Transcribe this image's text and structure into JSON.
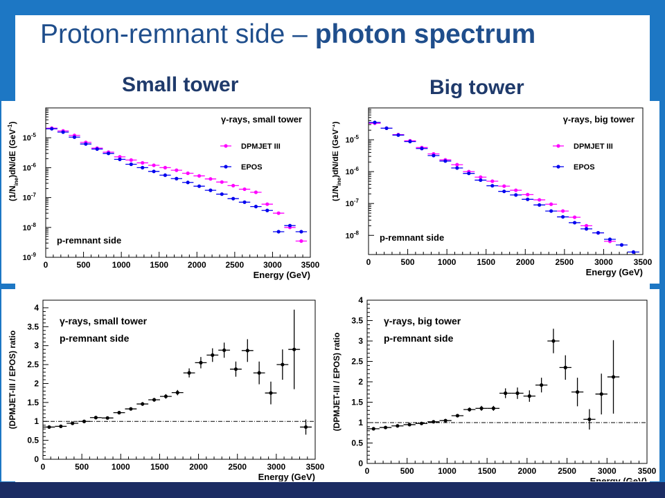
{
  "slide": {
    "title_main": "Proton-remnant side – ",
    "title_bold": "photon spectrum",
    "label_small": "Small tower",
    "label_big": "Big tower"
  },
  "colors": {
    "frame": "#1d77c4",
    "frame_bottom": "#1b2c63",
    "dpmjet": "#ff00ff",
    "epos": "#0000ee",
    "ratio": "#000000"
  },
  "chart_data": [
    {
      "id": "tl",
      "type": "scatter",
      "yscale": "log",
      "title": "γ-rays, small tower",
      "annotation": "p-remnant side",
      "xlabel": "Energy (GeV)",
      "ylabel": "(1/N_ine)dN/dE (GeV^-1)",
      "xlim": [
        0,
        3500
      ],
      "ylim": [
        1e-09,
        0.0001
      ],
      "xticks": [
        0,
        500,
        1000,
        1500,
        2000,
        2500,
        3000,
        3500
      ],
      "yticks": [
        1e-09,
        1e-08,
        1e-07,
        1e-06,
        1e-05
      ],
      "ytick_labels": [
        "10",
        "10",
        "10",
        "10",
        "10"
      ],
      "ytick_exps": [
        "-9",
        "-8",
        "-7",
        "-6",
        "-5"
      ],
      "legend": [
        "DPMJET III",
        "EPOS"
      ],
      "legend_position": "top-right",
      "series": [
        {
          "name": "DPMJET III",
          "color": "#ff00ff",
          "x": [
            80,
            230,
            380,
            530,
            680,
            830,
            980,
            1130,
            1280,
            1430,
            1580,
            1730,
            1880,
            2030,
            2180,
            2330,
            2480,
            2630,
            2780,
            2930,
            3080,
            3230,
            3380
          ],
          "y": [
            2.1e-05,
            1.7e-05,
            1.2e-05,
            7e-06,
            4.5e-06,
            3.3e-06,
            2.3e-06,
            1.8e-06,
            1.45e-06,
            1.2e-06,
            1e-06,
            8.2e-07,
            6.5e-07,
            5.3e-07,
            4.2e-07,
            3.3e-07,
            2.5e-07,
            1.9e-07,
            1.5e-07,
            6e-08,
            3e-08,
            1e-08,
            3.5e-09
          ],
          "xerr": 75
        },
        {
          "name": "EPOS",
          "color": "#0000ee",
          "x": [
            80,
            230,
            380,
            530,
            680,
            830,
            980,
            1130,
            1280,
            1430,
            1580,
            1730,
            1880,
            2030,
            2180,
            2330,
            2480,
            2630,
            2780,
            2930,
            3080,
            3230,
            3380
          ],
          "y": [
            2e-05,
            1.55e-05,
            1.05e-05,
            6.2e-06,
            4.2e-06,
            3e-06,
            1.9e-06,
            1.3e-06,
            1e-06,
            7.5e-07,
            5.6e-07,
            4.3e-07,
            3.2e-07,
            2.4e-07,
            1.75e-07,
            1.3e-07,
            9.2e-08,
            7e-08,
            5e-08,
            3.7e-08,
            7.2e-09,
            1.15e-08,
            7.2e-09
          ],
          "xerr": 75
        }
      ]
    },
    {
      "id": "tr",
      "type": "scatter",
      "yscale": "log",
      "title": "γ-rays, big tower",
      "annotation": "p-remnant side",
      "xlabel": "Energy (GeV)",
      "ylabel": "(1/N_ine)dN/dE (GeV^-1)",
      "xlim": [
        0,
        3500
      ],
      "ylim": [
        2.5e-09,
        0.0001
      ],
      "xticks": [
        0,
        500,
        1000,
        1500,
        2000,
        2500,
        3000,
        3500
      ],
      "yticks": [
        1e-08,
        1e-07,
        1e-06,
        1e-05
      ],
      "ytick_labels": [
        "10",
        "10",
        "10",
        "10"
      ],
      "ytick_exps": [
        "-8",
        "-7",
        "-6",
        "-5"
      ],
      "legend": [
        "DPMJET III",
        "EPOS"
      ],
      "legend_position": "top-right",
      "series": [
        {
          "name": "DPMJET III",
          "color": "#ff00ff",
          "x": [
            80,
            230,
            380,
            530,
            680,
            830,
            980,
            1130,
            1280,
            1430,
            1580,
            1730,
            1880,
            2030,
            2180,
            2330,
            2480,
            2630,
            2780,
            2930,
            3080
          ],
          "y": [
            3.3e-05,
            2.3e-05,
            1.45e-05,
            9.3e-06,
            5.7e-06,
            3.6e-06,
            2.35e-06,
            1.65e-06,
            1e-06,
            6.7e-07,
            5e-07,
            3.5e-07,
            2.6e-07,
            1.9e-07,
            1.3e-07,
            9.5e-08,
            5.8e-08,
            3.7e-08,
            2e-08,
            1.2e-08,
            6.5e-09
          ],
          "xerr": 75
        },
        {
          "name": "EPOS",
          "color": "#0000ee",
          "x": [
            80,
            230,
            380,
            530,
            680,
            830,
            980,
            1130,
            1280,
            1430,
            1580,
            1730,
            1880,
            2030,
            2180,
            2330,
            2480,
            2630,
            2780,
            2930,
            3080,
            3230,
            3380
          ],
          "y": [
            3.5e-05,
            2.3e-05,
            1.4e-05,
            8.8e-06,
            5.3e-06,
            3.2e-06,
            2.15e-06,
            1.3e-06,
            8.8e-07,
            5.4e-07,
            3.6e-07,
            2.4e-07,
            1.85e-07,
            1.35e-07,
            9e-08,
            5.8e-08,
            3.8e-08,
            2.5e-08,
            1.6e-08,
            1.2e-08,
            7.5e-09,
            5e-09,
            3e-09
          ],
          "xerr": 75
        }
      ]
    },
    {
      "id": "bl",
      "type": "scatter",
      "title": "γ-rays, small tower",
      "annotation": "p-remnant side",
      "xlabel": "Energy (GeV)",
      "ylabel": "(DPMJET-III / EPOS) ratio",
      "xlim": [
        0,
        3500
      ],
      "ylim": [
        0,
        4.2
      ],
      "xticks": [
        0,
        500,
        1000,
        1500,
        2000,
        2500,
        3000,
        3500
      ],
      "yticks": [
        0,
        0.5,
        1,
        1.5,
        2,
        2.5,
        3,
        3.5,
        4
      ],
      "reference_line": 1,
      "series": [
        {
          "name": "",
          "color": "#000000",
          "x": [
            80,
            230,
            380,
            530,
            680,
            830,
            980,
            1130,
            1280,
            1430,
            1580,
            1730,
            1880,
            2030,
            2180,
            2330,
            2480,
            2630,
            2780,
            2930,
            3080,
            3230,
            3380
          ],
          "y": [
            0.85,
            0.87,
            0.95,
            1.0,
            1.1,
            1.09,
            1.23,
            1.33,
            1.46,
            1.57,
            1.66,
            1.76,
            2.28,
            2.55,
            2.75,
            2.88,
            2.38,
            2.87,
            2.28,
            1.75,
            2.5,
            2.9,
            0.85
          ],
          "yerr": [
            0.03,
            0.03,
            0.03,
            0.03,
            0.03,
            0.03,
            0.04,
            0.04,
            0.05,
            0.05,
            0.06,
            0.07,
            0.12,
            0.15,
            0.18,
            0.2,
            0.2,
            0.3,
            0.3,
            0.3,
            0.4,
            1.05,
            0.2
          ],
          "xerr": 75
        }
      ]
    },
    {
      "id": "br",
      "type": "scatter",
      "title": "γ-rays, big tower",
      "annotation": "p-remnant side",
      "xlabel": "Energy (GeV)",
      "ylabel": "(DPMJET-III / EPOS) ratio",
      "xlim": [
        0,
        3500
      ],
      "ylim": [
        0,
        4
      ],
      "xticks": [
        0,
        500,
        1000,
        1500,
        2000,
        2500,
        3000,
        3500
      ],
      "yticks": [
        0,
        0.5,
        1,
        1.5,
        2,
        2.5,
        3,
        3.5,
        4
      ],
      "reference_line": 1,
      "series": [
        {
          "name": "",
          "color": "#000000",
          "x": [
            80,
            230,
            380,
            530,
            680,
            830,
            980,
            1130,
            1280,
            1430,
            1580,
            1730,
            1880,
            2030,
            2180,
            2330,
            2480,
            2630,
            2780,
            2930,
            3080
          ],
          "y": [
            0.85,
            0.88,
            0.92,
            0.95,
            0.98,
            1.02,
            1.05,
            1.17,
            1.32,
            1.35,
            1.35,
            1.72,
            1.72,
            1.65,
            1.92,
            3.0,
            2.35,
            1.75,
            1.08,
            1.7,
            2.12
          ],
          "yerr": [
            0.02,
            0.02,
            0.02,
            0.02,
            0.02,
            0.03,
            0.03,
            0.04,
            0.05,
            0.06,
            0.06,
            0.12,
            0.14,
            0.14,
            0.18,
            0.3,
            0.3,
            0.35,
            0.25,
            0.5,
            0.9
          ],
          "xerr": 75
        }
      ]
    }
  ]
}
